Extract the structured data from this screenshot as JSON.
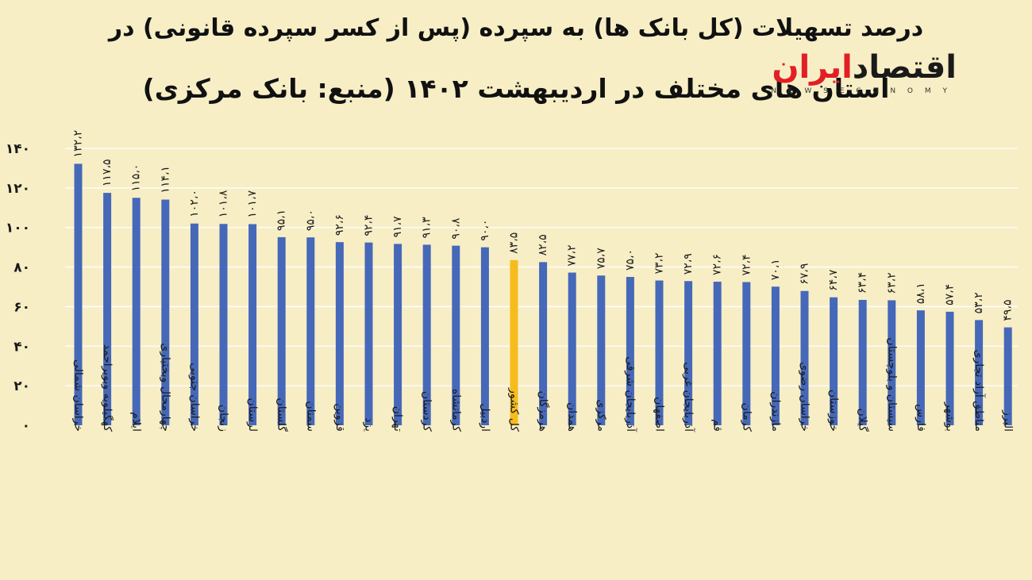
{
  "title_line1": "درصد تسهیلات (کل بانک ها) به سپرده (پس از کسر سپرده قانونی) در",
  "title_line2": "استان های مختلف در اردیبهشت ۱۴۰۲ (منبع: بانک مرکزی)",
  "logo": {
    "main_black": "اقتصاد",
    "main_red": "ایران",
    "sub": "N E W S   E C O N O M Y"
  },
  "colors": {
    "background": "#f7eec6",
    "bar": "#4668b8",
    "highlight_bar": "#f6bc1c",
    "grid": "#ffffff"
  },
  "chart_data": {
    "type": "bar",
    "ylim": [
      0,
      140
    ],
    "yticks": [
      0,
      20,
      40,
      60,
      80,
      100,
      120,
      140
    ],
    "ytick_labels": [
      "۰",
      "۲۰",
      "۴۰",
      "۶۰",
      "۸۰",
      "۱۰۰",
      "۱۲۰",
      "۱۴۰"
    ],
    "grid": true,
    "highlight_index": 15,
    "categories": [
      "خراسان شمالی",
      "کهگیلویه وبویراحمد",
      "ایلام",
      "چهارمحال وبختیاری",
      "خراسان جنوبی",
      "زنجان",
      "لرستان",
      "گلستان",
      "سمنان",
      "قزوین",
      "یزد",
      "تهران",
      "کردستان",
      "کرمانشاه",
      "اردبیل",
      "کل کشور",
      "هرمزگان",
      "همدان",
      "مرکزی",
      "آذربایجان شرقی",
      "اصفهان",
      "آذربایجان غربی",
      "قم",
      "کرمان",
      "مازندران",
      "خراسان رضوی",
      "خوزستان",
      "گیلان",
      "سیستان و بلوچستان",
      "فارس",
      "بوشهر",
      "مناطق آزاد تجاری",
      "البرز"
    ],
    "values": [
      132.2,
      117.5,
      115.0,
      114.1,
      102.0,
      101.8,
      101.7,
      95.1,
      95.0,
      92.6,
      92.4,
      91.7,
      91.3,
      90.8,
      90.0,
      83.5,
      82.5,
      77.2,
      75.7,
      75.0,
      73.2,
      72.9,
      72.6,
      72.4,
      70.1,
      67.9,
      64.7,
      63.4,
      63.2,
      58.1,
      57.4,
      53.2,
      49.5
    ],
    "value_labels": [
      "۱۳۲،۲",
      "۱۱۷،۵",
      "۱۱۵،۰",
      "۱۱۴،۱",
      "۱۰۲،۰",
      "۱۰۱،۸",
      "۱۰۱،۷",
      "۹۵،۱",
      "۹۵،۰",
      "۹۲،۶",
      "۹۲،۴",
      "۹۱،۷",
      "۹۱،۳",
      "۹۰،۸",
      "۹۰،۰",
      "۸۳،۵",
      "۸۲،۵",
      "۷۷،۲",
      "۷۵،۷",
      "۷۵،۰",
      "۷۳،۲",
      "۷۲،۹",
      "۷۲،۶",
      "۷۲،۴",
      "۷۰،۱",
      "۶۷،۹",
      "۶۴،۷",
      "۶۳،۴",
      "۶۳،۲",
      "۵۸،۱",
      "۵۷،۴",
      "۵۳،۲",
      "۴۹،۵"
    ]
  }
}
